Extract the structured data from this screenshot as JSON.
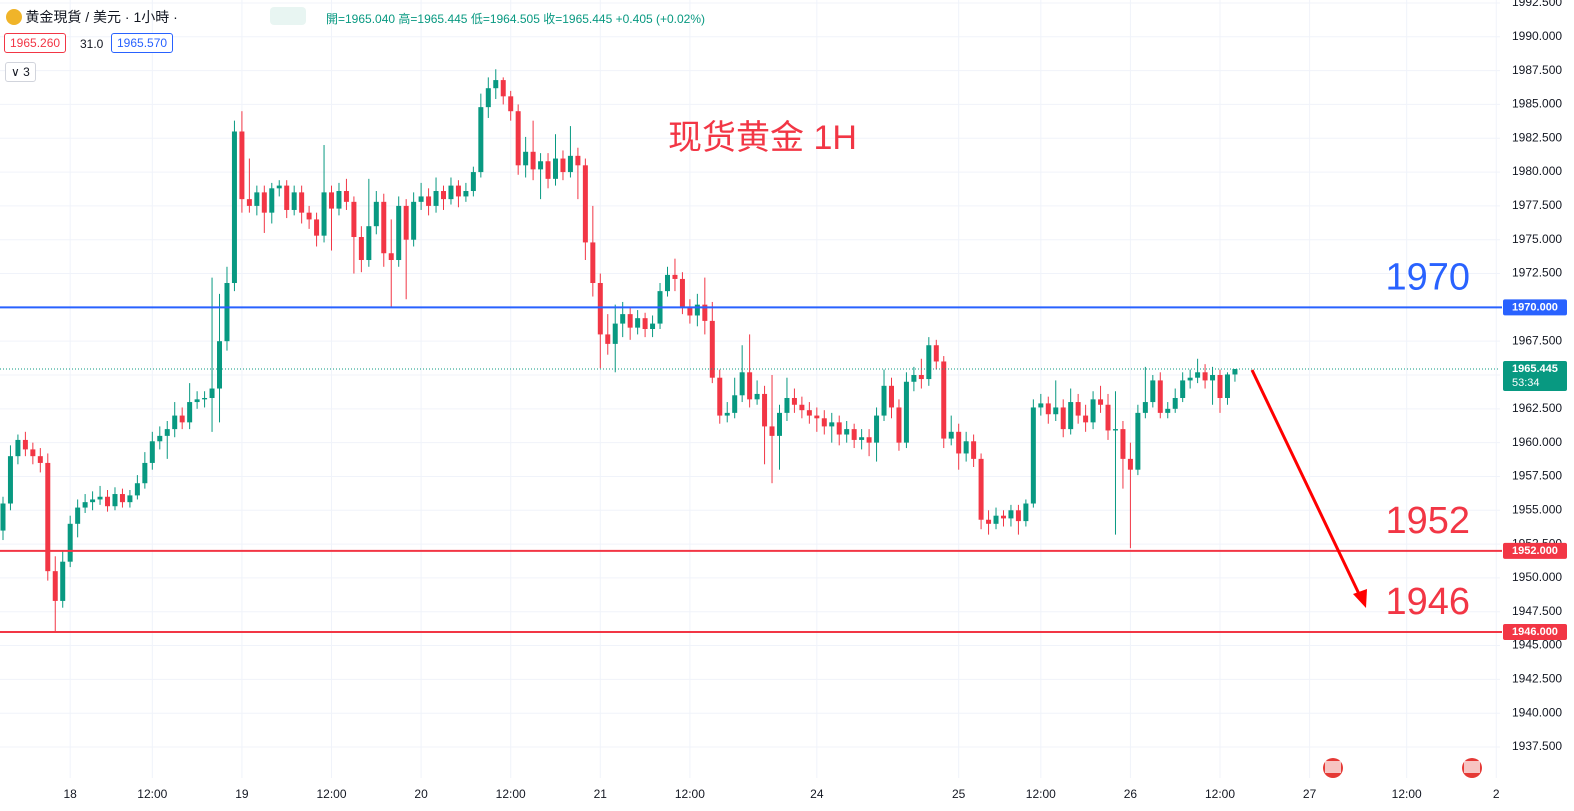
{
  "header": {
    "symbol": "黄金現貨 / 美元 · 1小時 ·",
    "ohlc": [
      "開=1965.040",
      "高=1965.445",
      "低=1964.505",
      "收=1965.445"
    ],
    "change": "+0.405 (+0.02%)",
    "bid": "1965.260",
    "spread": "31.0",
    "ask": "1965.570",
    "indicators": "3"
  },
  "chart_data": {
    "type": "candlestick",
    "title": "现货黄金 1H",
    "up_color": "#089981",
    "down_color": "#f23645",
    "grid": true,
    "xlim": [
      -0.4,
      200.5
    ],
    "ylim": [
      1935.21,
      1992.72
    ],
    "xticks": [
      {
        "value": 9,
        "label": "18"
      },
      {
        "value": 20,
        "label": "12:00"
      },
      {
        "value": 32,
        "label": "19"
      },
      {
        "value": 44,
        "label": "12:00"
      },
      {
        "value": 56,
        "label": "20"
      },
      {
        "value": 68,
        "label": "12:00"
      },
      {
        "value": 80,
        "label": "21"
      },
      {
        "value": 92,
        "label": "12:00"
      },
      {
        "value": 109,
        "label": "24"
      },
      {
        "value": 128,
        "label": "25"
      },
      {
        "value": 139,
        "label": "12:00"
      },
      {
        "value": 151,
        "label": "26"
      },
      {
        "value": 163,
        "label": "12:00"
      },
      {
        "value": 175,
        "label": "27"
      },
      {
        "value": 188,
        "label": "12:00"
      },
      {
        "value": 200,
        "label": "2"
      }
    ],
    "yticks": [
      {
        "value": 1937.5,
        "label": "1937.500"
      },
      {
        "value": 1940,
        "label": "1940.000"
      },
      {
        "value": 1942.5,
        "label": "1942.500"
      },
      {
        "value": 1945,
        "label": "1945.000"
      },
      {
        "value": 1947.5,
        "label": "1947.500"
      },
      {
        "value": 1950,
        "label": "1950.000"
      },
      {
        "value": 1952.5,
        "label": "1952.500"
      },
      {
        "value": 1955,
        "label": "1955.000"
      },
      {
        "value": 1957.5,
        "label": "1957.500"
      },
      {
        "value": 1960,
        "label": "1960.000"
      },
      {
        "value": 1962.5,
        "label": "1962.500"
      },
      {
        "value": 1965,
        "label": "1965.000"
      },
      {
        "value": 1967.5,
        "label": "1967.500"
      },
      {
        "value": 1970,
        "label": "1970.000"
      },
      {
        "value": 1972.5,
        "label": "1972.500"
      },
      {
        "value": 1975,
        "label": "1975.000"
      },
      {
        "value": 1977.5,
        "label": "1977.500"
      },
      {
        "value": 1980,
        "label": "1980.000"
      },
      {
        "value": 1982.5,
        "label": "1982.500"
      },
      {
        "value": 1985,
        "label": "1985.000"
      },
      {
        "value": 1987.5,
        "label": "1987.500"
      },
      {
        "value": 1990,
        "label": "1990.000"
      },
      {
        "value": 1992.5,
        "label": "1992.500"
      }
    ],
    "levels": [
      {
        "value": 1970,
        "axis_label": "1970.000",
        "color": "#2962ff"
      },
      {
        "value": 1952,
        "axis_label": "1952.000",
        "color": "#f23645"
      },
      {
        "value": 1946,
        "axis_label": "1946.000",
        "color": "#f23645"
      }
    ],
    "last_price": {
      "value": 1965.445,
      "countdown": "53:34",
      "color": "#089981"
    },
    "candles": [
      [
        1953.5,
        1956.0,
        1952.8,
        1955.5
      ],
      [
        1955.5,
        1959.8,
        1955.0,
        1959.0
      ],
      [
        1959.0,
        1960.6,
        1958.4,
        1960.2
      ],
      [
        1960.2,
        1960.8,
        1959.0,
        1959.5
      ],
      [
        1959.5,
        1960.0,
        1958.4,
        1959.0
      ],
      [
        1959.0,
        1959.6,
        1957.8,
        1958.5
      ],
      [
        1958.5,
        1959.2,
        1949.8,
        1950.5
      ],
      [
        1950.5,
        1951.6,
        1946.0,
        1948.3
      ],
      [
        1948.3,
        1952.0,
        1947.8,
        1951.2
      ],
      [
        1951.2,
        1954.6,
        1950.8,
        1954.0
      ],
      [
        1954.0,
        1955.8,
        1953.0,
        1955.2
      ],
      [
        1955.2,
        1956.2,
        1954.8,
        1955.6
      ],
      [
        1955.6,
        1956.4,
        1955.0,
        1955.8
      ],
      [
        1955.8,
        1956.8,
        1955.4,
        1956.0
      ],
      [
        1956.0,
        1956.5,
        1954.9,
        1955.3
      ],
      [
        1955.3,
        1956.7,
        1955.0,
        1956.2
      ],
      [
        1956.2,
        1956.6,
        1955.2,
        1955.6
      ],
      [
        1955.6,
        1956.5,
        1955.2,
        1956.1
      ],
      [
        1956.1,
        1957.6,
        1955.8,
        1957.0
      ],
      [
        1957.0,
        1959.3,
        1956.6,
        1958.5
      ],
      [
        1958.5,
        1960.8,
        1958.0,
        1960.1
      ],
      [
        1960.1,
        1961.2,
        1959.5,
        1960.5
      ],
      [
        1960.5,
        1961.6,
        1958.8,
        1961.0
      ],
      [
        1961.0,
        1963.0,
        1960.4,
        1962.0
      ],
      [
        1962.0,
        1962.6,
        1961.0,
        1961.5
      ],
      [
        1961.5,
        1964.4,
        1961.0,
        1963.0
      ],
      [
        1963.0,
        1963.8,
        1962.5,
        1963.2
      ],
      [
        1963.2,
        1963.8,
        1962.6,
        1963.3
      ],
      [
        1963.3,
        1972.2,
        1960.8,
        1964.0
      ],
      [
        1964.0,
        1971.0,
        1961.5,
        1967.5
      ],
      [
        1967.5,
        1973.0,
        1966.8,
        1971.8
      ],
      [
        1971.8,
        1983.8,
        1971.2,
        1983.0
      ],
      [
        1983.0,
        1984.5,
        1977.0,
        1978.0
      ],
      [
        1978.0,
        1981.0,
        1977.0,
        1977.5
      ],
      [
        1977.5,
        1979.0,
        1976.8,
        1978.5
      ],
      [
        1978.5,
        1979.0,
        1975.5,
        1977.0
      ],
      [
        1977.0,
        1979.2,
        1976.2,
        1978.8
      ],
      [
        1978.8,
        1979.4,
        1978.2,
        1979.0
      ],
      [
        1979.0,
        1979.4,
        1976.6,
        1977.2
      ],
      [
        1977.2,
        1979.0,
        1976.8,
        1978.5
      ],
      [
        1978.5,
        1979.0,
        1976.2,
        1977.0
      ],
      [
        1977.0,
        1977.5,
        1975.8,
        1976.5
      ],
      [
        1976.5,
        1977.0,
        1974.5,
        1975.3
      ],
      [
        1975.3,
        1982.0,
        1974.8,
        1978.5
      ],
      [
        1978.5,
        1979.0,
        1974.2,
        1977.3
      ],
      [
        1977.3,
        1979.2,
        1976.8,
        1978.6
      ],
      [
        1978.6,
        1979.5,
        1977.2,
        1977.8
      ],
      [
        1977.8,
        1978.2,
        1972.5,
        1975.2
      ],
      [
        1975.2,
        1976.0,
        1972.6,
        1973.5
      ],
      [
        1973.5,
        1979.5,
        1973.0,
        1976.0
      ],
      [
        1976.0,
        1978.6,
        1975.4,
        1977.8
      ],
      [
        1977.8,
        1978.4,
        1973.0,
        1974.0
      ],
      [
        1974.0,
        1976.5,
        1970.0,
        1973.5
      ],
      [
        1973.5,
        1978.2,
        1973.0,
        1977.5
      ],
      [
        1977.5,
        1978.0,
        1970.6,
        1975.0
      ],
      [
        1975.0,
        1978.5,
        1974.5,
        1977.8
      ],
      [
        1977.8,
        1979.2,
        1977.2,
        1978.2
      ],
      [
        1978.2,
        1978.8,
        1976.8,
        1977.5
      ],
      [
        1977.5,
        1979.6,
        1977.0,
        1978.6
      ],
      [
        1978.6,
        1979.0,
        1977.2,
        1978.0
      ],
      [
        1978.0,
        1979.6,
        1977.6,
        1979.0
      ],
      [
        1979.0,
        1979.4,
        1977.4,
        1978.2
      ],
      [
        1978.2,
        1979.2,
        1977.8,
        1978.6
      ],
      [
        1978.6,
        1980.4,
        1978.2,
        1980.0
      ],
      [
        1980.0,
        1985.8,
        1979.6,
        1984.8
      ],
      [
        1984.8,
        1987.0,
        1984.0,
        1986.2
      ],
      [
        1986.2,
        1987.6,
        1985.4,
        1986.8
      ],
      [
        1986.8,
        1987.0,
        1985.0,
        1985.6
      ],
      [
        1985.6,
        1986.0,
        1983.8,
        1984.5
      ],
      [
        1984.5,
        1985.0,
        1979.8,
        1980.5
      ],
      [
        1980.5,
        1982.6,
        1979.6,
        1981.5
      ],
      [
        1981.5,
        1983.8,
        1979.4,
        1980.2
      ],
      [
        1980.2,
        1981.4,
        1978.0,
        1980.8
      ],
      [
        1980.8,
        1981.4,
        1978.8,
        1979.5
      ],
      [
        1979.5,
        1982.8,
        1979.0,
        1981.0
      ],
      [
        1981.0,
        1981.6,
        1979.4,
        1980.0
      ],
      [
        1980.0,
        1983.4,
        1979.6,
        1981.2
      ],
      [
        1981.2,
        1981.8,
        1978.0,
        1980.5
      ],
      [
        1980.5,
        1981.0,
        1973.5,
        1974.8
      ],
      [
        1974.8,
        1977.5,
        1970.8,
        1971.8
      ],
      [
        1971.8,
        1972.5,
        1965.5,
        1968.0
      ],
      [
        1968.0,
        1969.5,
        1966.5,
        1967.3
      ],
      [
        1967.3,
        1970.2,
        1965.2,
        1968.8
      ],
      [
        1968.8,
        1970.4,
        1967.8,
        1969.5
      ],
      [
        1969.5,
        1970.0,
        1967.6,
        1968.5
      ],
      [
        1968.5,
        1969.8,
        1968.0,
        1969.2
      ],
      [
        1969.2,
        1969.6,
        1967.8,
        1968.4
      ],
      [
        1968.4,
        1969.4,
        1967.8,
        1968.8
      ],
      [
        1968.8,
        1971.8,
        1968.4,
        1971.2
      ],
      [
        1971.2,
        1973.0,
        1970.8,
        1972.4
      ],
      [
        1972.4,
        1973.6,
        1971.2,
        1972.1
      ],
      [
        1972.1,
        1972.6,
        1969.5,
        1970.0
      ],
      [
        1970.0,
        1970.6,
        1968.8,
        1969.4
      ],
      [
        1969.4,
        1971.0,
        1968.6,
        1970.2
      ],
      [
        1970.2,
        1972.2,
        1968.0,
        1969.0
      ],
      [
        1969.0,
        1970.4,
        1964.4,
        1964.8
      ],
      [
        1964.8,
        1965.4,
        1961.4,
        1962.0
      ],
      [
        1962.0,
        1963.0,
        1961.5,
        1962.2
      ],
      [
        1962.2,
        1964.8,
        1961.8,
        1963.5
      ],
      [
        1963.5,
        1967.2,
        1963.0,
        1965.2
      ],
      [
        1965.2,
        1968.0,
        1962.6,
        1963.2
      ],
      [
        1963.2,
        1964.6,
        1962.8,
        1963.6
      ],
      [
        1963.6,
        1964.2,
        1958.4,
        1961.2
      ],
      [
        1961.2,
        1965.0,
        1957.0,
        1960.5
      ],
      [
        1960.5,
        1962.8,
        1958.0,
        1962.2
      ],
      [
        1962.2,
        1964.8,
        1961.6,
        1963.3
      ],
      [
        1963.3,
        1964.0,
        1962.2,
        1962.8
      ],
      [
        1962.8,
        1963.4,
        1961.8,
        1962.4
      ],
      [
        1962.4,
        1963.0,
        1961.4,
        1962.0
      ],
      [
        1962.0,
        1962.6,
        1960.8,
        1961.8
      ],
      [
        1961.8,
        1962.4,
        1960.6,
        1961.2
      ],
      [
        1961.2,
        1962.2,
        1960.0,
        1961.5
      ],
      [
        1961.5,
        1962.0,
        1959.8,
        1960.6
      ],
      [
        1960.6,
        1961.6,
        1960.0,
        1961.0
      ],
      [
        1961.0,
        1961.4,
        1959.6,
        1960.2
      ],
      [
        1960.2,
        1961.0,
        1959.5,
        1960.4
      ],
      [
        1960.4,
        1961.0,
        1959.0,
        1960.0
      ],
      [
        1960.0,
        1962.6,
        1958.6,
        1962.0
      ],
      [
        1962.0,
        1965.4,
        1961.6,
        1964.2
      ],
      [
        1964.2,
        1964.8,
        1961.8,
        1962.6
      ],
      [
        1962.6,
        1963.2,
        1959.4,
        1960.0
      ],
      [
        1960.0,
        1965.2,
        1959.6,
        1964.5
      ],
      [
        1964.5,
        1965.6,
        1963.8,
        1965.0
      ],
      [
        1965.0,
        1966.2,
        1964.0,
        1964.7
      ],
      [
        1964.7,
        1967.8,
        1964.2,
        1967.2
      ],
      [
        1967.2,
        1967.6,
        1965.4,
        1966.0
      ],
      [
        1966.0,
        1966.4,
        1959.6,
        1960.3
      ],
      [
        1960.3,
        1962.0,
        1959.8,
        1960.8
      ],
      [
        1960.8,
        1961.4,
        1958.0,
        1959.2
      ],
      [
        1959.2,
        1960.8,
        1958.6,
        1960.1
      ],
      [
        1960.1,
        1960.6,
        1958.2,
        1958.8
      ],
      [
        1958.8,
        1959.2,
        1953.6,
        1954.3
      ],
      [
        1954.3,
        1955.0,
        1953.2,
        1954.0
      ],
      [
        1954.0,
        1955.2,
        1953.6,
        1954.6
      ],
      [
        1954.6,
        1955.0,
        1953.8,
        1954.4
      ],
      [
        1954.4,
        1955.4,
        1953.8,
        1955.0
      ],
      [
        1955.0,
        1955.4,
        1953.2,
        1954.2
      ],
      [
        1954.2,
        1955.8,
        1953.8,
        1955.5
      ],
      [
        1955.5,
        1963.2,
        1955.2,
        1962.6
      ],
      [
        1962.6,
        1963.6,
        1962.0,
        1962.9
      ],
      [
        1962.9,
        1963.4,
        1961.4,
        1962.1
      ],
      [
        1962.1,
        1964.6,
        1961.6,
        1962.6
      ],
      [
        1962.6,
        1963.2,
        1960.4,
        1961.0
      ],
      [
        1961.0,
        1964.0,
        1960.6,
        1963.0
      ],
      [
        1963.0,
        1963.6,
        1961.4,
        1962.0
      ],
      [
        1962.0,
        1962.8,
        1960.8,
        1961.5
      ],
      [
        1961.5,
        1963.8,
        1961.0,
        1963.2
      ],
      [
        1963.2,
        1964.2,
        1962.2,
        1962.8
      ],
      [
        1962.8,
        1963.6,
        1960.2,
        1960.9
      ],
      [
        1960.9,
        1963.8,
        1953.2,
        1961.0
      ],
      [
        1961.0,
        1961.6,
        1956.6,
        1958.8
      ],
      [
        1958.8,
        1960.0,
        1952.2,
        1958.0
      ],
      [
        1958.0,
        1962.8,
        1957.6,
        1962.2
      ],
      [
        1962.2,
        1965.6,
        1961.8,
        1963.0
      ],
      [
        1963.0,
        1965.0,
        1962.6,
        1964.6
      ],
      [
        1964.6,
        1965.2,
        1961.8,
        1962.2
      ],
      [
        1962.2,
        1963.0,
        1961.8,
        1962.5
      ],
      [
        1962.5,
        1964.0,
        1962.2,
        1963.3
      ],
      [
        1963.3,
        1965.2,
        1963.0,
        1964.6
      ],
      [
        1964.6,
        1965.4,
        1964.0,
        1964.8
      ],
      [
        1964.8,
        1966.2,
        1964.4,
        1965.2
      ],
      [
        1965.2,
        1965.8,
        1964.0,
        1964.6
      ],
      [
        1964.6,
        1965.6,
        1962.8,
        1965.0
      ],
      [
        1965.0,
        1965.4,
        1962.2,
        1963.3
      ],
      [
        1963.3,
        1965.2,
        1962.8,
        1965.04
      ],
      [
        1965.04,
        1965.445,
        1964.505,
        1965.445
      ]
    ]
  }
}
